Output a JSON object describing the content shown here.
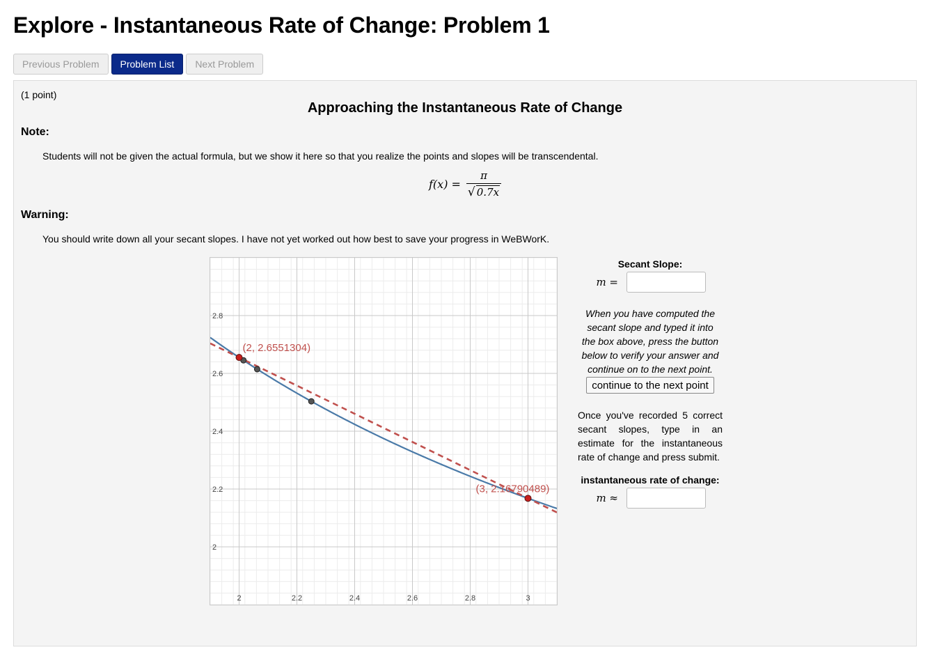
{
  "page": {
    "title": "Explore - Instantaneous Rate of Change: Problem 1"
  },
  "nav": {
    "previous_label": "Previous Problem",
    "list_label": "Problem List",
    "next_label": "Next Problem"
  },
  "problem": {
    "points": "(1 point)",
    "heading": "Approaching the Instantaneous Rate of Change",
    "note_label": "Note:",
    "note_text": "Students will not be given the actual formula, but we show it here so that you realize the points and slopes will be transcendental.",
    "formula": {
      "lhs": "f(x) =",
      "numerator": "π",
      "radicand": "0.7x"
    },
    "warning_label": "Warning:",
    "warning_text": "You should write down all your secant slopes. I have not yet worked out how best to save your progress in WeBWorK."
  },
  "side": {
    "secant_heading": "Secant Slope:",
    "secant_label": "m =",
    "secant_value": "",
    "instructions": "When you have computed the secant slope and typed it into the box above, press the button below to verify your answer and continue on to the next point.",
    "continue_label": "continue to the next point",
    "once_text": "Once you've recorded 5 correct secant slopes, type in an estimate for the instantaneous rate of change and press submit.",
    "irc_heading": "instantaneous rate of change:",
    "irc_label": "m ≈",
    "irc_value": ""
  },
  "chart_data": {
    "type": "line",
    "function": "f(x) = π / sqrt(0.7x)",
    "xlim": [
      1.9,
      3.1
    ],
    "ylim": [
      1.8,
      3.0
    ],
    "x_ticks": [
      2,
      2.2,
      2.4,
      2.6,
      2.8,
      3
    ],
    "x_tick_labels": [
      "2",
      "2.2",
      "2.4",
      "2.6",
      "2.8",
      "3"
    ],
    "y_ticks": [
      2,
      2.2,
      2.4,
      2.6,
      2.8
    ],
    "y_tick_labels": [
      "2",
      "2.2",
      "2.4",
      "2.6",
      "2.8"
    ],
    "grid": true,
    "curve_color": "#4a7aa8",
    "secant_color": "#c0504d",
    "labeled_points": [
      {
        "x": 2,
        "y": 2.6551304,
        "label": "(2, 2.6551304)"
      },
      {
        "x": 3,
        "y": 2.16790489,
        "label": "(3, 2.16790489)"
      }
    ],
    "secant_line": {
      "x1": 2,
      "y1": 2.6551304,
      "x2": 3,
      "y2": 2.16790489
    },
    "gray_points": [
      {
        "x": 2.015,
        "y": 2.6452
      },
      {
        "x": 2.0625,
        "y": 2.6146
      },
      {
        "x": 2.25,
        "y": 2.5033
      }
    ]
  }
}
